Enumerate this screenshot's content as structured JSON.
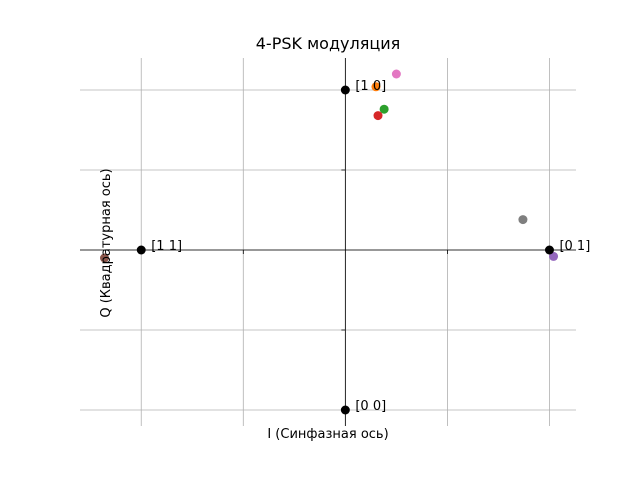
{
  "chart_data": {
    "type": "scatter",
    "title": "4-PSK модуляция",
    "xlabel": "I (Синфазная ось)",
    "ylabel": "Q (Квадратурная ось)",
    "xlim": [
      -1.3,
      1.13
    ],
    "ylim": [
      -1.1,
      1.2
    ],
    "grid": true,
    "gridlines_x": [
      -1.0,
      -0.5,
      0.0,
      0.5,
      1.0
    ],
    "gridlines_y": [
      -1.0,
      -0.5,
      0.0,
      0.5,
      1.0
    ],
    "ideal_points": [
      {
        "x": 1.0,
        "y": 0.0,
        "label": "[0 1]"
      },
      {
        "x": 0.0,
        "y": 1.0,
        "label": "[1 0]"
      },
      {
        "x": -1.0,
        "y": 0.0,
        "label": "[1 1]"
      },
      {
        "x": 0.0,
        "y": -1.0,
        "label": "[0 0]"
      }
    ],
    "ideal_color": "#000000",
    "received_points": [
      {
        "x": 0.15,
        "y": 1.02,
        "color": "#ff7f0e"
      },
      {
        "x": 0.25,
        "y": 1.1,
        "color": "#e377c2"
      },
      {
        "x": 0.19,
        "y": 0.88,
        "color": "#2ca02c"
      },
      {
        "x": 0.16,
        "y": 0.84,
        "color": "#d62728"
      },
      {
        "x": 0.87,
        "y": 0.19,
        "color": "#7f7f7f"
      },
      {
        "x": 1.02,
        "y": -0.04,
        "color": "#9467bd"
      },
      {
        "x": -1.18,
        "y": -0.05,
        "color": "#8c564b"
      }
    ]
  }
}
